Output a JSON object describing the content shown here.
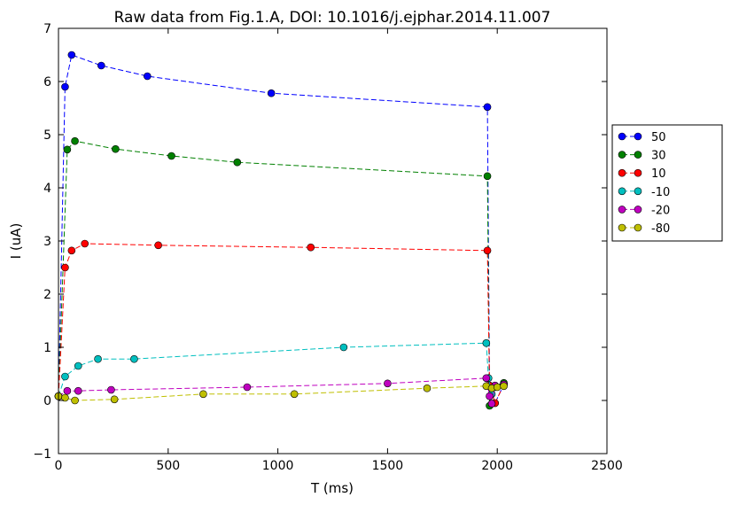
{
  "chart_data": {
    "type": "line",
    "title": "Raw data from Fig.1.A, DOI: 10.1016/j.ejphar.2014.11.007",
    "xlabel": "T (ms)",
    "ylabel": "I (uA)",
    "xlim": [
      0,
      2500
    ],
    "ylim": [
      -1,
      7
    ],
    "xticks": [
      0,
      500,
      1000,
      1500,
      2000,
      2500
    ],
    "yticks": [
      -1,
      0,
      1,
      2,
      3,
      4,
      5,
      6,
      7
    ],
    "grid": false,
    "legend_position": "outside-right",
    "series": [
      {
        "name": "50",
        "color": "#0000ff",
        "x": [
          0,
          30,
          60,
          195,
          405,
          970,
          1955,
          1965,
          1990,
          2030
        ],
        "y": [
          0.08,
          5.9,
          6.5,
          6.3,
          6.1,
          5.78,
          5.52,
          0.28,
          -0.05,
          0.3
        ]
      },
      {
        "name": "30",
        "color": "#008000",
        "x": [
          0,
          40,
          75,
          260,
          515,
          815,
          1955,
          1965,
          1990,
          2030
        ],
        "y": [
          0.08,
          4.72,
          4.88,
          4.73,
          4.6,
          4.48,
          4.22,
          -0.1,
          0.28,
          0.33
        ]
      },
      {
        "name": "10",
        "color": "#ff0000",
        "x": [
          0,
          30,
          60,
          120,
          455,
          1150,
          1955,
          1965,
          1990,
          2030
        ],
        "y": [
          0.08,
          2.5,
          2.82,
          2.95,
          2.92,
          2.88,
          2.82,
          0.28,
          -0.05,
          0.3
        ]
      },
      {
        "name": "-10",
        "color": "#00bfbf",
        "x": [
          0,
          30,
          90,
          180,
          345,
          1300,
          1950,
          1960,
          1975,
          1990,
          2030
        ],
        "y": [
          0.08,
          0.45,
          0.65,
          0.78,
          0.78,
          1.0,
          1.08,
          0.42,
          0.12,
          0.25,
          0.3
        ]
      },
      {
        "name": "-20",
        "color": "#bf00bf",
        "x": [
          0,
          40,
          90,
          240,
          860,
          1500,
          1950,
          1965,
          1975,
          1990,
          2030
        ],
        "y": [
          0.08,
          0.18,
          0.18,
          0.2,
          0.25,
          0.32,
          0.42,
          0.08,
          -0.06,
          0.28,
          0.3
        ]
      },
      {
        "name": "-80",
        "color": "#bfbf00",
        "x": [
          0,
          30,
          75,
          255,
          660,
          1075,
          1680,
          1950,
          1975,
          2000,
          2030
        ],
        "y": [
          0.08,
          0.05,
          0.0,
          0.02,
          0.12,
          0.12,
          0.23,
          0.27,
          0.23,
          0.25,
          0.27
        ]
      }
    ]
  }
}
